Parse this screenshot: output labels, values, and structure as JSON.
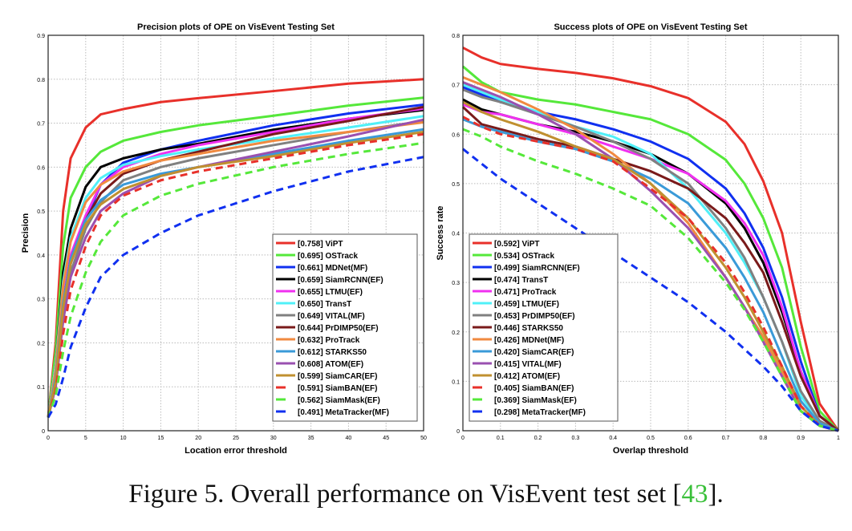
{
  "caption": {
    "text": "Figure 5. Overall performance on VisEvent test set [",
    "ref": "43",
    "end": "]."
  },
  "chart_data": [
    {
      "type": "line",
      "title": "Precision plots of OPE on VisEvent Testing Set",
      "xlabel": "Location error threshold",
      "ylabel": "Precision",
      "xlim": [
        0,
        50
      ],
      "ylim": [
        0,
        0.9
      ],
      "xticks": [
        0,
        5,
        10,
        15,
        20,
        25,
        30,
        35,
        40,
        45,
        50
      ],
      "yticks": [
        0,
        0.1,
        0.2,
        0.3,
        0.4,
        0.5,
        0.6,
        0.7,
        0.8,
        0.9
      ],
      "grid": true,
      "legend": "bottom-right",
      "x": [
        0,
        1,
        2,
        3,
        5,
        7,
        10,
        15,
        20,
        30,
        40,
        50
      ],
      "series": [
        {
          "name": "[0.758] ViPT",
          "color": "#e8302a",
          "dash": false,
          "values": [
            0.03,
            0.2,
            0.5,
            0.62,
            0.69,
            0.72,
            0.732,
            0.748,
            0.757,
            0.773,
            0.79,
            0.8
          ]
        },
        {
          "name": "[0.695] OSTrack",
          "color": "#55e83a",
          "dash": false,
          "values": [
            0.03,
            0.18,
            0.42,
            0.53,
            0.6,
            0.635,
            0.66,
            0.68,
            0.695,
            0.717,
            0.74,
            0.758
          ]
        },
        {
          "name": "[0.661] MDNet(MF)",
          "color": "#1030f0",
          "dash": false,
          "values": [
            0.03,
            0.12,
            0.28,
            0.38,
            0.48,
            0.56,
            0.61,
            0.64,
            0.66,
            0.695,
            0.722,
            0.742
          ]
        },
        {
          "name": "[0.659] SiamRCNN(EF)",
          "color": "#000000",
          "dash": false,
          "values": [
            0.03,
            0.15,
            0.36,
            0.46,
            0.555,
            0.6,
            0.62,
            0.64,
            0.653,
            0.685,
            0.71,
            0.73
          ]
        },
        {
          "name": "[0.655] LTMU(EF)",
          "color": "#f030f0",
          "dash": false,
          "values": [
            0.03,
            0.12,
            0.3,
            0.4,
            0.49,
            0.56,
            0.6,
            0.63,
            0.65,
            0.68,
            0.71,
            0.733
          ]
        },
        {
          "name": "[0.650] TransT",
          "color": "#50f0f8",
          "dash": false,
          "values": [
            0.03,
            0.15,
            0.34,
            0.44,
            0.53,
            0.575,
            0.605,
            0.625,
            0.64,
            0.665,
            0.69,
            0.716
          ]
        },
        {
          "name": "[0.649] VITAL(MF)",
          "color": "#808080",
          "dash": false,
          "values": [
            0.03,
            0.1,
            0.26,
            0.36,
            0.46,
            0.52,
            0.57,
            0.6,
            0.62,
            0.65,
            0.68,
            0.705
          ]
        },
        {
          "name": "[0.644] PrDIMP50(EF)",
          "color": "#7a1a1a",
          "dash": false,
          "values": [
            0.03,
            0.12,
            0.29,
            0.39,
            0.48,
            0.54,
            0.585,
            0.615,
            0.635,
            0.675,
            0.705,
            0.737
          ]
        },
        {
          "name": "[0.632] ProTrack",
          "color": "#f08a40",
          "dash": false,
          "values": [
            0.03,
            0.14,
            0.33,
            0.43,
            0.52,
            0.56,
            0.59,
            0.615,
            0.63,
            0.66,
            0.68,
            0.702
          ]
        },
        {
          "name": "[0.612] STARKS50",
          "color": "#3a9ad8",
          "dash": false,
          "values": [
            0.03,
            0.12,
            0.29,
            0.39,
            0.48,
            0.525,
            0.56,
            0.585,
            0.6,
            0.63,
            0.66,
            0.686
          ]
        },
        {
          "name": "[0.608] ATOM(EF)",
          "color": "#9a50b0",
          "dash": false,
          "values": [
            0.03,
            0.1,
            0.25,
            0.35,
            0.44,
            0.5,
            0.54,
            0.58,
            0.6,
            0.635,
            0.67,
            0.708
          ]
        },
        {
          "name": "[0.599] SiamCAR(EF)",
          "color": "#c09030",
          "dash": false,
          "values": [
            0.03,
            0.11,
            0.28,
            0.38,
            0.47,
            0.515,
            0.55,
            0.58,
            0.6,
            0.625,
            0.655,
            0.68
          ]
        },
        {
          "name": "[0.591] SiamBAN(EF)",
          "color": "#e8302a",
          "dash": true,
          "values": [
            0.03,
            0.09,
            0.22,
            0.32,
            0.42,
            0.49,
            0.535,
            0.57,
            0.59,
            0.62,
            0.65,
            0.675
          ]
        },
        {
          "name": "[0.562] SiamMask(EF)",
          "color": "#55e83a",
          "dash": true,
          "values": [
            0.03,
            0.08,
            0.18,
            0.26,
            0.36,
            0.43,
            0.49,
            0.535,
            0.562,
            0.6,
            0.63,
            0.655
          ]
        },
        {
          "name": "[0.491] MetaTracker(MF)",
          "color": "#1030f0",
          "dash": true,
          "values": [
            0.03,
            0.06,
            0.12,
            0.19,
            0.28,
            0.35,
            0.4,
            0.45,
            0.49,
            0.545,
            0.59,
            0.623
          ]
        }
      ]
    },
    {
      "type": "line",
      "title": "Success plots of OPE on VisEvent Testing Set",
      "xlabel": "Overlap threshold",
      "ylabel": "Success rate",
      "xlim": [
        0,
        1
      ],
      "ylim": [
        0,
        0.8
      ],
      "xticks": [
        0,
        0.1,
        0.2,
        0.3,
        0.4,
        0.5,
        0.6,
        0.7,
        0.8,
        0.9,
        1
      ],
      "yticks": [
        0,
        0.1,
        0.2,
        0.3,
        0.4,
        0.5,
        0.6,
        0.7,
        0.8
      ],
      "grid": true,
      "legend": "bottom-left",
      "x": [
        0,
        0.05,
        0.1,
        0.2,
        0.3,
        0.4,
        0.5,
        0.6,
        0.7,
        0.75,
        0.8,
        0.85,
        0.9,
        0.95,
        1
      ],
      "series": [
        {
          "name": "[0.592] ViPT",
          "color": "#e8302a",
          "dash": false,
          "values": [
            0.775,
            0.755,
            0.742,
            0.732,
            0.724,
            0.713,
            0.697,
            0.673,
            0.625,
            0.58,
            0.505,
            0.4,
            0.22,
            0.055,
            0
          ]
        },
        {
          "name": "[0.534] OSTrack",
          "color": "#55e83a",
          "dash": false,
          "values": [
            0.737,
            0.705,
            0.685,
            0.67,
            0.66,
            0.645,
            0.63,
            0.6,
            0.548,
            0.5,
            0.43,
            0.33,
            0.17,
            0.04,
            0
          ]
        },
        {
          "name": "[0.499] SiamRCNN(EF)",
          "color": "#1030f0",
          "dash": false,
          "values": [
            0.695,
            0.68,
            0.665,
            0.645,
            0.63,
            0.61,
            0.585,
            0.55,
            0.49,
            0.44,
            0.37,
            0.27,
            0.14,
            0.03,
            0
          ]
        },
        {
          "name": "[0.474] TransT",
          "color": "#000000",
          "dash": false,
          "values": [
            0.67,
            0.65,
            0.64,
            0.62,
            0.605,
            0.585,
            0.56,
            0.52,
            0.46,
            0.41,
            0.34,
            0.24,
            0.12,
            0.03,
            0
          ]
        },
        {
          "name": "[0.471] ProTrack",
          "color": "#f030f0",
          "dash": false,
          "values": [
            0.66,
            0.645,
            0.64,
            0.62,
            0.6,
            0.575,
            0.55,
            0.52,
            0.465,
            0.42,
            0.355,
            0.25,
            0.12,
            0.03,
            0
          ]
        },
        {
          "name": "[0.459] LTMU(EF)",
          "color": "#50f0f8",
          "dash": false,
          "values": [
            0.7,
            0.685,
            0.67,
            0.645,
            0.615,
            0.595,
            0.56,
            0.49,
            0.4,
            0.34,
            0.27,
            0.18,
            0.07,
            0.02,
            0
          ]
        },
        {
          "name": "[0.453] PrDIMP50(EF)",
          "color": "#808080",
          "dash": false,
          "values": [
            0.69,
            0.675,
            0.665,
            0.64,
            0.615,
            0.585,
            0.55,
            0.5,
            0.41,
            0.35,
            0.27,
            0.18,
            0.08,
            0.02,
            0
          ]
        },
        {
          "name": "[0.446] STARKS50",
          "color": "#7a1a1a",
          "dash": false,
          "values": [
            0.655,
            0.62,
            0.61,
            0.59,
            0.575,
            0.55,
            0.525,
            0.49,
            0.43,
            0.38,
            0.32,
            0.22,
            0.11,
            0.03,
            0
          ]
        },
        {
          "name": "[0.426] MDNet(MF)",
          "color": "#f08a40",
          "dash": false,
          "values": [
            0.715,
            0.7,
            0.685,
            0.65,
            0.61,
            0.56,
            0.5,
            0.42,
            0.31,
            0.25,
            0.19,
            0.12,
            0.05,
            0.01,
            0
          ]
        },
        {
          "name": "[0.420] SiamCAR(EF)",
          "color": "#3a9ad8",
          "dash": false,
          "values": [
            0.63,
            0.615,
            0.605,
            0.585,
            0.57,
            0.545,
            0.51,
            0.46,
            0.37,
            0.31,
            0.24,
            0.15,
            0.06,
            0.015,
            0
          ]
        },
        {
          "name": "[0.415] VITAL(MF)",
          "color": "#9a50b0",
          "dash": false,
          "values": [
            0.705,
            0.69,
            0.675,
            0.64,
            0.6,
            0.55,
            0.485,
            0.41,
            0.31,
            0.25,
            0.18,
            0.11,
            0.04,
            0.01,
            0
          ]
        },
        {
          "name": "[0.412] ATOM(EF)",
          "color": "#c09030",
          "dash": false,
          "values": [
            0.665,
            0.645,
            0.63,
            0.605,
            0.575,
            0.55,
            0.5,
            0.43,
            0.33,
            0.27,
            0.2,
            0.13,
            0.05,
            0.01,
            0
          ]
        },
        {
          "name": "[0.405] SiamBAN(EF)",
          "color": "#e8302a",
          "dash": true,
          "values": [
            0.635,
            0.615,
            0.6,
            0.585,
            0.57,
            0.545,
            0.49,
            0.43,
            0.34,
            0.28,
            0.21,
            0.13,
            0.05,
            0.01,
            0
          ]
        },
        {
          "name": "[0.369] SiamMask(EF)",
          "color": "#55e83a",
          "dash": true,
          "values": [
            0.61,
            0.595,
            0.575,
            0.545,
            0.52,
            0.49,
            0.455,
            0.39,
            0.3,
            0.245,
            0.18,
            0.11,
            0.04,
            0.01,
            0
          ]
        },
        {
          "name": "[0.298] MetaTracker(MF)",
          "color": "#1030f0",
          "dash": true,
          "values": [
            0.57,
            0.54,
            0.51,
            0.46,
            0.41,
            0.36,
            0.31,
            0.26,
            0.2,
            0.165,
            0.13,
            0.09,
            0.04,
            0.01,
            0
          ]
        }
      ]
    }
  ]
}
